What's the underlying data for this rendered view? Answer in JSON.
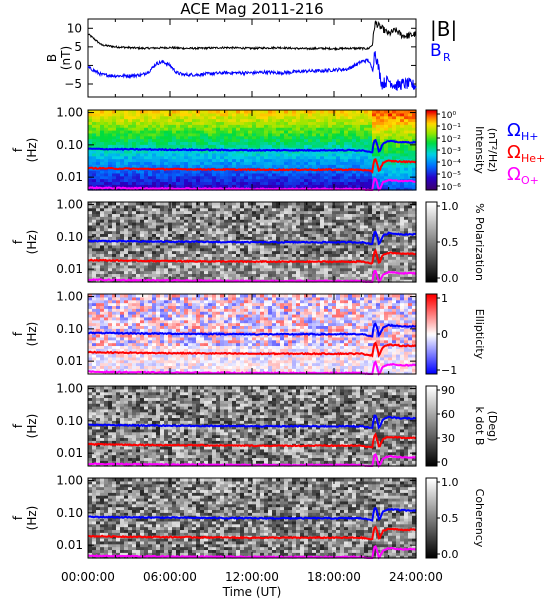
{
  "chart_data": {
    "type": "multi-panel spectrogram",
    "title": "ACE Mag 2011-216",
    "xlabel": "Time (UT)",
    "x_ticks": [
      "00:00:00",
      "06:00:00",
      "12:00:00",
      "18:00:00",
      "24:00:00"
    ],
    "x_range_hours": [
      0,
      24
    ],
    "freq_ticks": [
      "1.00",
      "0.10",
      "0.01"
    ],
    "freq_label": [
      "f",
      "(Hz)"
    ],
    "freq_range_hz": [
      0.004,
      1.2
    ],
    "field_panel": {
      "ylabel": [
        "B",
        "(nT)"
      ],
      "y_ticks": [
        10,
        5,
        0,
        -5
      ],
      "ylim": [
        -8.5,
        12.5
      ],
      "legend_B": "|B|",
      "legend_BR": "B",
      "legend_BR_sub": "R",
      "B_total": {
        "color": "#000000",
        "t": [
          0,
          1,
          2,
          3,
          4,
          5,
          6,
          7,
          8,
          9,
          10,
          11,
          12,
          13,
          14,
          15,
          16,
          17,
          18,
          19,
          20,
          20.5,
          20.8,
          21,
          21.5,
          22,
          22.5,
          23,
          23.5,
          24
        ],
        "v": [
          8.5,
          5.5,
          5.0,
          4.8,
          4.6,
          4.7,
          4.8,
          4.6,
          4.6,
          4.7,
          4.8,
          4.7,
          4.6,
          4.7,
          4.8,
          4.6,
          4.5,
          4.6,
          4.5,
          4.6,
          4.6,
          4.5,
          5.5,
          11.5,
          10.0,
          8.5,
          9.5,
          8.0,
          8.0,
          8.5
        ]
      },
      "B_R": {
        "color": "#0000ff",
        "t": [
          0,
          0.5,
          1,
          2,
          3,
          4,
          4.5,
          5,
          5.5,
          6,
          6.5,
          7,
          8,
          9,
          10,
          11,
          12,
          13,
          14,
          15,
          16,
          17,
          18,
          19,
          20,
          20.5,
          20.8,
          21,
          21.5,
          22,
          22.5,
          23,
          23.5,
          24
        ],
        "v": [
          -0.5,
          -1.5,
          -2.5,
          -2.8,
          -2.8,
          -2.5,
          -1.5,
          0.5,
          1.0,
          0.0,
          -2.0,
          -2.5,
          -2.5,
          -2.2,
          -2.0,
          -2.0,
          -2.0,
          -1.8,
          -2.0,
          -1.8,
          -1.5,
          -1.5,
          -1.2,
          -1.0,
          1.0,
          1.5,
          -1.0,
          4.0,
          -5.0,
          -4.0,
          -5.5,
          -5.0,
          -5.0,
          -5.5
        ]
      }
    },
    "panels": [
      {
        "name": "Intensity",
        "cbar_label_lines": [
          "Intensity",
          "(nT²/Hz)"
        ],
        "cbar_ticks": [
          "10⁰",
          "10⁻¹",
          "10⁻²",
          "10⁻³",
          "10⁻⁴",
          "10⁻⁵",
          "10⁻⁶"
        ],
        "cmap": "rainbow",
        "legend": [
          {
            "sym": "Ω",
            "sub": "H+",
            "color": "#0000ff"
          },
          {
            "sym": "Ω",
            "sub": "He+",
            "color": "#ff0000"
          },
          {
            "sym": "Ω",
            "sub": "O+",
            "color": "#ff00ff"
          }
        ]
      },
      {
        "name": "% Polarization",
        "cbar_label_lines": [
          "% Polarization"
        ],
        "cbar_ticks": [
          "1.0",
          "0.5",
          "0.0"
        ],
        "cmap": "gray"
      },
      {
        "name": "Ellipticity",
        "cbar_label_lines": [
          "Ellipticity"
        ],
        "cbar_ticks": [
          "1",
          "0",
          "−1"
        ],
        "cmap": "redwhiteblue"
      },
      {
        "name": "k dot B",
        "cbar_label_lines": [
          "k dot B",
          "(Deg)"
        ],
        "cbar_ticks": [
          "90",
          "60",
          "30",
          "0"
        ],
        "cmap": "gray"
      },
      {
        "name": "Coherency",
        "cbar_label_lines": [
          "Coherency"
        ],
        "cbar_ticks": [
          "1.0",
          "0.5",
          "0.0"
        ],
        "cmap": "gray"
      }
    ],
    "gyrofrequencies_hz": {
      "t": [
        0,
        4,
        8,
        12,
        16,
        19,
        20,
        20.8,
        21,
        21.3,
        21.6,
        22,
        23,
        24
      ],
      "H+": {
        "color": "#0000ff",
        "v": [
          0.075,
          0.072,
          0.07,
          0.068,
          0.068,
          0.068,
          0.068,
          0.06,
          0.16,
          0.055,
          0.11,
          0.13,
          0.12,
          0.12
        ]
      },
      "He+": {
        "color": "#ff0000",
        "v": [
          0.019,
          0.018,
          0.0175,
          0.017,
          0.017,
          0.017,
          0.017,
          0.015,
          0.04,
          0.014,
          0.028,
          0.032,
          0.03,
          0.03
        ]
      },
      "O+": {
        "color": "#ff00ff",
        "v": [
          0.0047,
          0.0045,
          0.0044,
          0.0043,
          0.0043,
          0.0043,
          0.0043,
          0.0038,
          0.01,
          0.0035,
          0.007,
          0.008,
          0.0075,
          0.0075
        ]
      }
    }
  }
}
